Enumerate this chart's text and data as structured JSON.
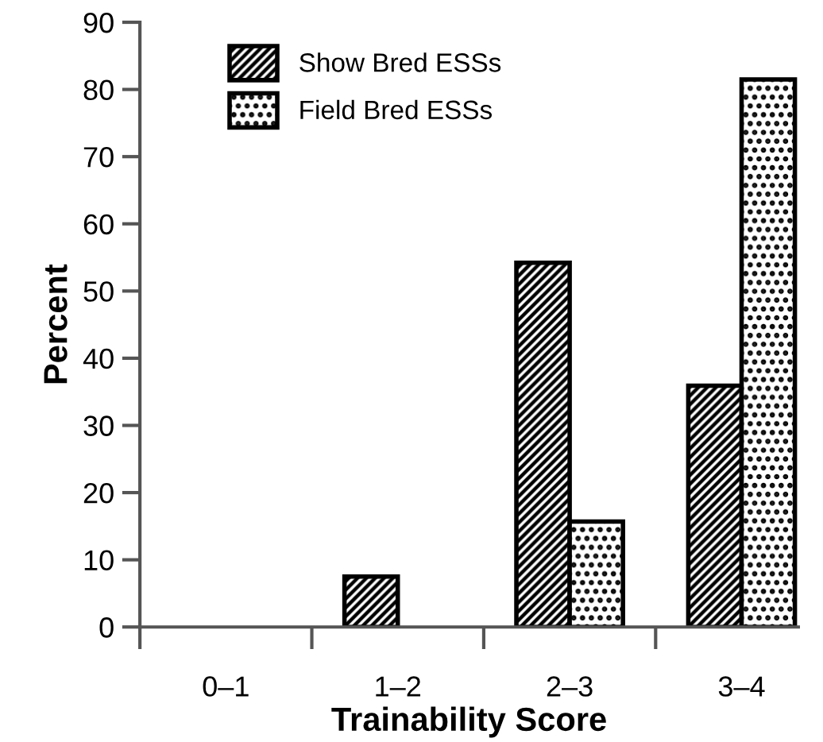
{
  "chart_data": {
    "type": "bar",
    "xlabel": "Trainability Score",
    "ylabel": "Percent",
    "categories": [
      "0–1",
      "1–2",
      "2–3",
      "3–4"
    ],
    "series": [
      {
        "name": "Show Bred ESSs",
        "color": "#000000",
        "values": [
          0,
          7.5,
          54.2,
          35.9
        ]
      },
      {
        "name": "Field Bred ESSs",
        "color": "#000000",
        "values": [
          0,
          0,
          15.7,
          81.5
        ]
      }
    ],
    "ylim": [
      0,
      90
    ],
    "yticks": [
      0,
      10,
      20,
      30,
      40,
      50,
      60,
      70,
      80,
      90
    ],
    "grid": false,
    "legend": "top left"
  }
}
